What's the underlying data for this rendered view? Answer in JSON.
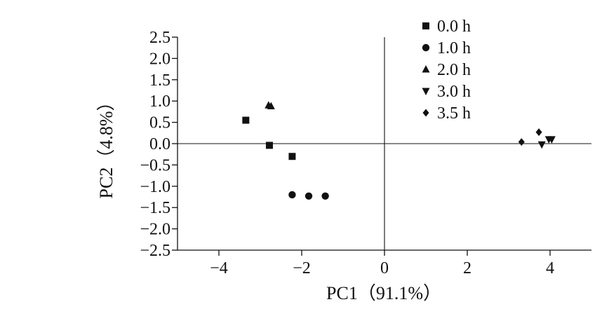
{
  "chart_data": {
    "type": "scatter",
    "title": "",
    "xlabel": "PC1（91.1%）",
    "ylabel": "PC2（4.8%）",
    "xlim": [
      -5,
      5
    ],
    "ylim": [
      -2.5,
      2.5
    ],
    "x_ticks": [
      -4,
      -2,
      0,
      2,
      4
    ],
    "x_tick_labels": [
      "−4",
      "−2",
      "0",
      "2",
      "4"
    ],
    "y_ticks": [
      2.5,
      2.0,
      1.5,
      1.0,
      0.5,
      0.0,
      -0.5,
      -1.0,
      -1.5,
      -2.0,
      -2.5
    ],
    "y_tick_labels": [
      "2.5",
      "2.0",
      "1.5",
      "1.0",
      "0.5",
      "0.0",
      "−0.5",
      "−1.0",
      "−1.5",
      "−2.0",
      "−2.5"
    ],
    "grid": false,
    "reference_lines": {
      "x": 0,
      "y": 0
    },
    "legend_position": "top-right",
    "series": [
      {
        "name": "0.0 h",
        "marker": "square",
        "color": "#111111",
        "points": [
          [
            -3.35,
            0.55
          ],
          [
            -2.78,
            -0.04
          ],
          [
            -2.23,
            -0.3
          ]
        ]
      },
      {
        "name": "1.0 h",
        "marker": "circle",
        "color": "#111111",
        "points": [
          [
            -2.23,
            -1.2
          ],
          [
            -1.83,
            -1.23
          ],
          [
            -1.43,
            -1.23
          ]
        ]
      },
      {
        "name": "2.0 h",
        "marker": "triangle-up",
        "color": "#111111",
        "points": [
          [
            -2.8,
            0.9
          ],
          [
            -2.74,
            0.88
          ]
        ]
      },
      {
        "name": "3.0 h",
        "marker": "triangle-down",
        "color": "#111111",
        "points": [
          [
            3.8,
            -0.02
          ],
          [
            3.97,
            0.1
          ],
          [
            4.04,
            0.1
          ]
        ]
      },
      {
        "name": "3.5 h",
        "marker": "diamond",
        "color": "#111111",
        "points": [
          [
            3.31,
            0.04
          ],
          [
            3.73,
            0.27
          ]
        ]
      }
    ]
  }
}
